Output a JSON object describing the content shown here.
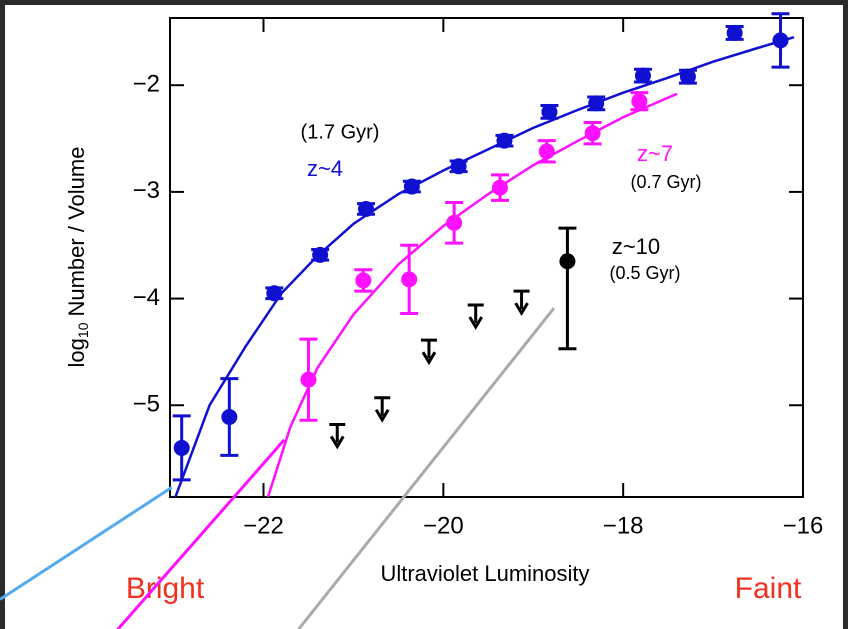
{
  "chart_data": {
    "type": "scatter",
    "xlabel": "Ultraviolet Luminosity",
    "ylabel": "log",
    "ylabel_sub": "10",
    "ylabel_rest": "Number  /  Volume",
    "xlim": [
      -23.04,
      -16
    ],
    "ylim": [
      -5.86,
      -1.37
    ],
    "xticks": [
      {
        "value": -22,
        "label": "−22"
      },
      {
        "value": -20,
        "label": "−20"
      },
      {
        "value": -18,
        "label": "−18"
      },
      {
        "value": -16,
        "label": "−16"
      }
    ],
    "yticks": [
      {
        "value": -5,
        "label": "−5"
      },
      {
        "value": -4,
        "label": "−4"
      },
      {
        "value": -3,
        "label": "−3"
      },
      {
        "value": -2,
        "label": "−2"
      }
    ],
    "series": [
      {
        "color": "#1010d0",
        "x": [
          -22.91,
          -22.38,
          -21.88,
          -21.37,
          -20.86,
          -20.35,
          -19.83,
          -19.32,
          -18.82,
          -18.3,
          -17.78,
          -17.28,
          -16.76,
          -16.25
        ],
        "values": [
          -5.4,
          -5.11,
          -3.95,
          -3.59,
          -3.16,
          -2.95,
          -2.76,
          -2.52,
          -2.25,
          -2.17,
          -1.91,
          -1.92,
          -1.51,
          -1.58
        ],
        "err_low": [
          0.3,
          0.36,
          0.05,
          0.05,
          0.05,
          0.05,
          0.05,
          0.05,
          0.06,
          0.06,
          0.06,
          0.06,
          0.06,
          0.25
        ],
        "err_high": [
          0.3,
          0.36,
          0.05,
          0.05,
          0.05,
          0.05,
          0.05,
          0.05,
          0.06,
          0.06,
          0.06,
          0.06,
          0.06,
          0.25
        ]
      },
      {
        "color": "#ff10ff",
        "x": [
          -21.5,
          -20.89,
          -20.38,
          -19.88,
          -19.37,
          -18.85,
          -18.34,
          -17.82
        ],
        "values": [
          -4.76,
          -3.83,
          -3.82,
          -3.29,
          -2.96,
          -2.62,
          -2.45,
          -2.15
        ],
        "err_low": [
          0.38,
          0.1,
          0.32,
          0.19,
          0.12,
          0.1,
          0.1,
          0.08
        ],
        "err_high": [
          0.38,
          0.1,
          0.32,
          0.19,
          0.12,
          0.1,
          0.1,
          0.08
        ]
      },
      {
        "color": "#000000",
        "x": [
          -18.62
        ],
        "values": [
          -3.65
        ],
        "err_low": [
          0.82
        ],
        "err_high": [
          0.31
        ]
      }
    ],
    "upper_limits": {
      "color": "#000000",
      "x": [
        -21.18,
        -20.68,
        -20.16,
        -19.64,
        -19.13
      ],
      "values": [
        -5.18,
        -4.93,
        -4.39,
        -4.06,
        -3.93
      ]
    },
    "fits": [
      {
        "color": "#1010d0",
        "x": [
          -22.98,
          -22.6,
          -22.2,
          -21.8,
          -21.4,
          -21.0,
          -20.5,
          -20.0,
          -19.5,
          -19.0,
          -18.5,
          -18.0,
          -17.5,
          -17.0,
          -16.5,
          -16.1
        ],
        "values": [
          -5.86,
          -5.0,
          -4.45,
          -3.95,
          -3.6,
          -3.3,
          -3.02,
          -2.8,
          -2.6,
          -2.4,
          -2.23,
          -2.07,
          -1.93,
          -1.78,
          -1.65,
          -1.55
        ]
      },
      {
        "color": "#ff10ff",
        "x": [
          -21.95,
          -21.7,
          -21.4,
          -21.0,
          -20.5,
          -20.0,
          -19.5,
          -19.0,
          -18.5,
          -18.0,
          -17.4
        ],
        "values": [
          -5.86,
          -5.2,
          -4.65,
          -4.15,
          -3.68,
          -3.32,
          -3.02,
          -2.75,
          -2.52,
          -2.3,
          -2.08
        ]
      }
    ],
    "extrapolations": [
      {
        "color": "#55aaee",
        "x": [
          -23.02,
          -24.93
        ],
        "values": [
          -5.77,
          -6.82
        ]
      },
      {
        "color": "#ff10ff",
        "x": [
          -21.77,
          -23.62
        ],
        "values": [
          -5.325,
          -7.1
        ]
      },
      {
        "color": "#aaaaaa",
        "x": [
          -18.77,
          -21.61
        ],
        "values": [
          -4.09,
          -7.1
        ]
      }
    ],
    "annotations": [
      "(1.7 Gyr)",
      "z~4",
      "z~7",
      "(0.7 Gyr)",
      "z~10",
      "(0.5 Gyr)",
      "Bright",
      "Faint"
    ]
  }
}
